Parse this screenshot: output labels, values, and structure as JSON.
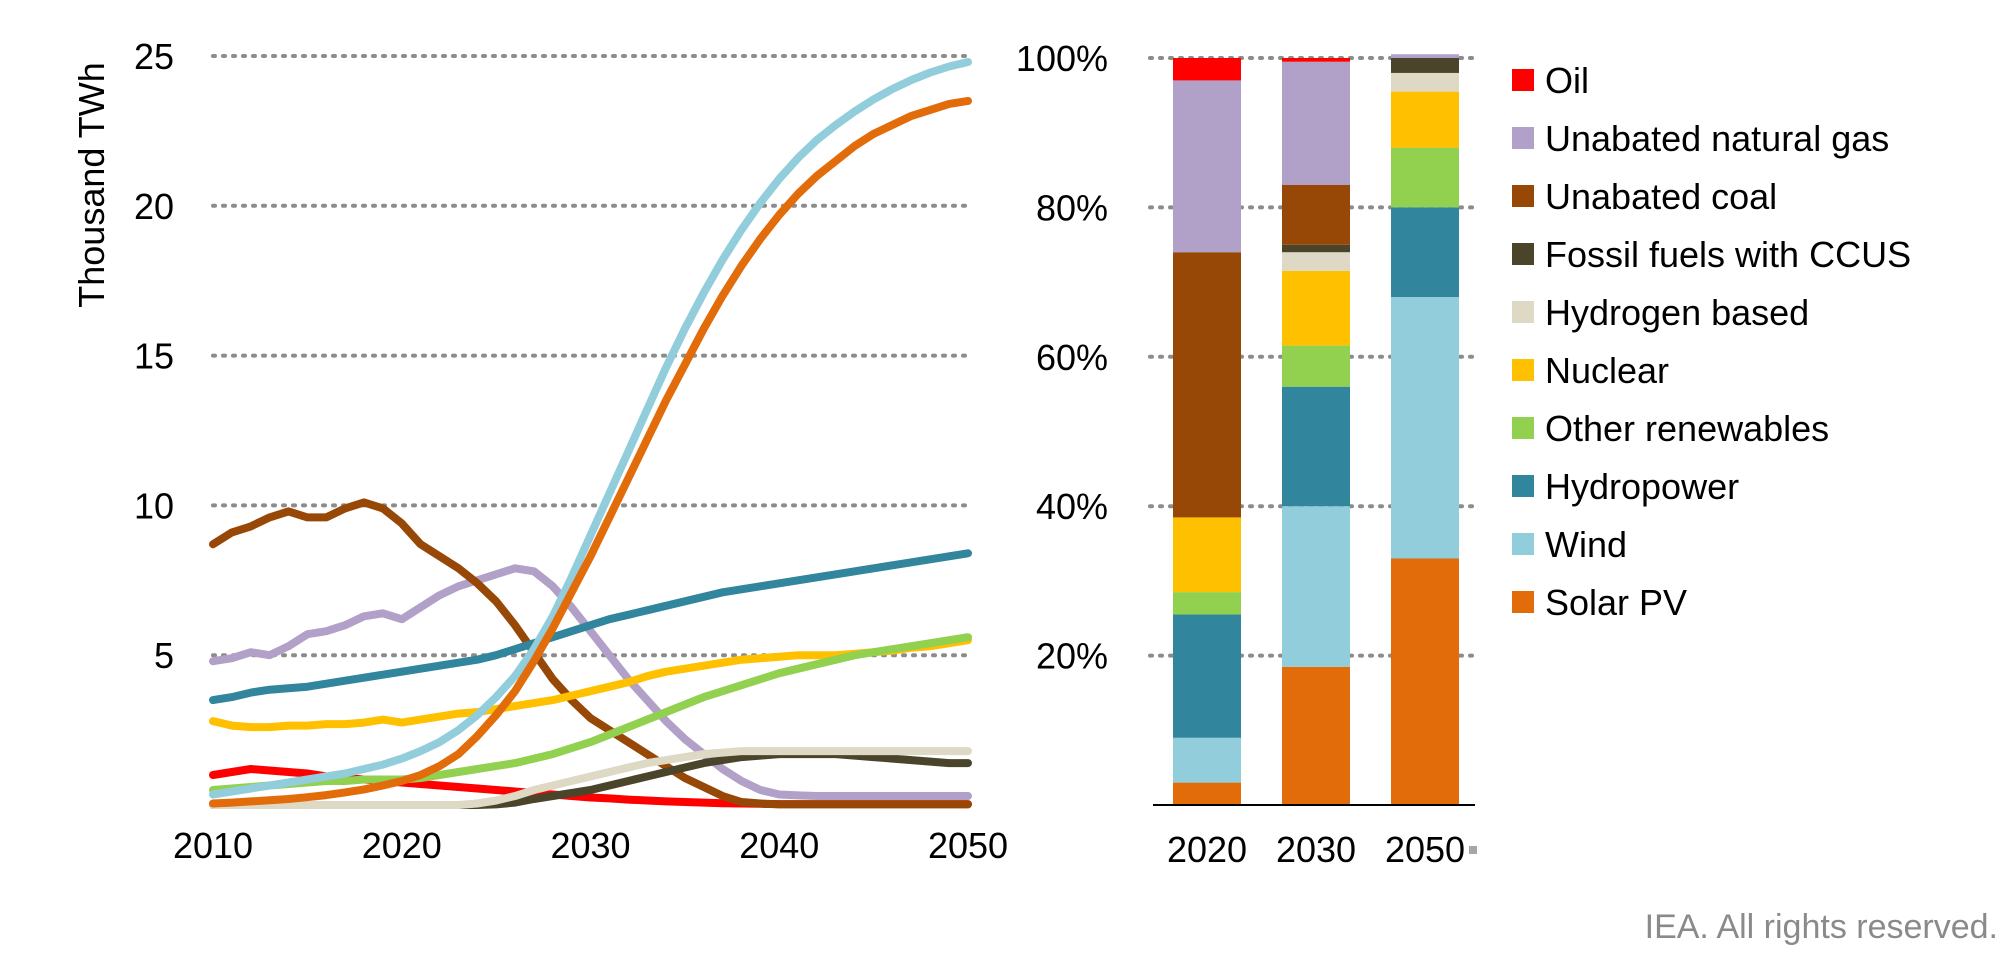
{
  "footer": {
    "copyright": "IEA. All rights reserved."
  },
  "chart_data": [
    {
      "type": "line",
      "ylabel": "Thousand TWh",
      "xlabel": "",
      "x_ticks": [
        "2010",
        "2020",
        "2030",
        "2040",
        "2050"
      ],
      "y_ticks": [
        "5",
        "10",
        "15",
        "20",
        "25"
      ],
      "xlim": [
        2010,
        2050
      ],
      "ylim": [
        0,
        25
      ],
      "grid": "horizontal dotted",
      "x": [
        2010,
        2011,
        2012,
        2013,
        2014,
        2015,
        2016,
        2017,
        2018,
        2019,
        2020,
        2021,
        2022,
        2023,
        2024,
        2025,
        2026,
        2027,
        2028,
        2029,
        2030,
        2031,
        2032,
        2033,
        2034,
        2035,
        2036,
        2037,
        2038,
        2039,
        2040,
        2041,
        2042,
        2043,
        2044,
        2045,
        2046,
        2047,
        2048,
        2049,
        2050
      ],
      "series": [
        {
          "name": "Oil",
          "color": "#ff0000",
          "values": [
            1.0,
            1.1,
            1.2,
            1.15,
            1.1,
            1.05,
            0.95,
            0.9,
            0.85,
            0.8,
            0.75,
            0.7,
            0.65,
            0.6,
            0.55,
            0.5,
            0.45,
            0.4,
            0.35,
            0.3,
            0.25,
            0.22,
            0.18,
            0.15,
            0.12,
            0.1,
            0.08,
            0.06,
            0.05,
            0.04,
            0.03,
            0.03,
            0.03,
            0.03,
            0.03,
            0.03,
            0.03,
            0.03,
            0.03,
            0.03,
            0.03
          ]
        },
        {
          "name": "Unabated natural gas",
          "color": "#b1a0c7",
          "values": [
            4.8,
            4.9,
            5.1,
            5.0,
            5.3,
            5.7,
            5.8,
            6.0,
            6.3,
            6.4,
            6.2,
            6.6,
            7.0,
            7.3,
            7.5,
            7.7,
            7.9,
            7.8,
            7.3,
            6.6,
            5.8,
            5.0,
            4.2,
            3.5,
            2.8,
            2.2,
            1.7,
            1.2,
            0.8,
            0.5,
            0.35,
            0.32,
            0.3,
            0.3,
            0.3,
            0.3,
            0.3,
            0.3,
            0.3,
            0.3,
            0.3
          ]
        },
        {
          "name": "Unabated coal",
          "color": "#974806",
          "values": [
            8.7,
            9.1,
            9.3,
            9.6,
            9.8,
            9.6,
            9.6,
            9.9,
            10.1,
            9.9,
            9.4,
            8.7,
            8.3,
            7.9,
            7.4,
            6.8,
            6.0,
            5.1,
            4.2,
            3.5,
            2.9,
            2.5,
            2.1,
            1.7,
            1.3,
            0.9,
            0.6,
            0.3,
            0.1,
            0.05,
            0.02,
            0.02,
            0.02,
            0.02,
            0.02,
            0.02,
            0.02,
            0.02,
            0.02,
            0.02,
            0.02
          ]
        },
        {
          "name": "Fossil fuels with CCUS",
          "color": "#4a452a",
          "values": [
            0,
            0,
            0,
            0,
            0,
            0,
            0,
            0,
            0,
            0,
            0,
            0,
            0,
            0,
            0,
            0.02,
            0.08,
            0.2,
            0.3,
            0.4,
            0.5,
            0.65,
            0.8,
            0.95,
            1.1,
            1.25,
            1.4,
            1.5,
            1.6,
            1.65,
            1.7,
            1.7,
            1.7,
            1.7,
            1.65,
            1.6,
            1.55,
            1.5,
            1.45,
            1.4,
            1.4
          ]
        },
        {
          "name": "Hydrogen based",
          "color": "#ddd9c4",
          "values": [
            0,
            0,
            0,
            0,
            0,
            0,
            0,
            0,
            0,
            0,
            0,
            0,
            0,
            0,
            0.05,
            0.15,
            0.3,
            0.5,
            0.65,
            0.8,
            0.95,
            1.1,
            1.25,
            1.4,
            1.5,
            1.6,
            1.7,
            1.75,
            1.8,
            1.8,
            1.8,
            1.8,
            1.8,
            1.8,
            1.8,
            1.8,
            1.8,
            1.8,
            1.8,
            1.8,
            1.8
          ]
        },
        {
          "name": "Nuclear",
          "color": "#ffc000",
          "values": [
            2.8,
            2.65,
            2.6,
            2.6,
            2.65,
            2.65,
            2.7,
            2.7,
            2.75,
            2.85,
            2.75,
            2.85,
            2.95,
            3.05,
            3.1,
            3.2,
            3.3,
            3.4,
            3.5,
            3.65,
            3.8,
            3.95,
            4.1,
            4.3,
            4.45,
            4.55,
            4.65,
            4.75,
            4.85,
            4.9,
            4.95,
            5.0,
            5.0,
            5.0,
            5.05,
            5.1,
            5.15,
            5.25,
            5.3,
            5.4,
            5.5
          ]
        },
        {
          "name": "Other renewables",
          "color": "#92d050",
          "values": [
            0.5,
            0.55,
            0.6,
            0.65,
            0.7,
            0.75,
            0.8,
            0.8,
            0.85,
            0.85,
            0.85,
            0.9,
            1.0,
            1.1,
            1.2,
            1.3,
            1.4,
            1.55,
            1.7,
            1.9,
            2.1,
            2.35,
            2.6,
            2.85,
            3.1,
            3.35,
            3.6,
            3.8,
            4.0,
            4.2,
            4.4,
            4.55,
            4.7,
            4.85,
            5.0,
            5.1,
            5.2,
            5.3,
            5.4,
            5.5,
            5.6
          ]
        },
        {
          "name": "Hydropower",
          "color": "#31859c",
          "values": [
            3.5,
            3.6,
            3.75,
            3.85,
            3.9,
            3.95,
            4.05,
            4.15,
            4.25,
            4.35,
            4.45,
            4.55,
            4.65,
            4.75,
            4.85,
            5.0,
            5.2,
            5.4,
            5.6,
            5.8,
            6.0,
            6.2,
            6.35,
            6.5,
            6.65,
            6.8,
            6.95,
            7.1,
            7.2,
            7.3,
            7.4,
            7.5,
            7.6,
            7.7,
            7.8,
            7.9,
            8.0,
            8.1,
            8.2,
            8.3,
            8.4
          ]
        },
        {
          "name": "Wind",
          "color": "#92cddc",
          "values": [
            0.35,
            0.45,
            0.55,
            0.65,
            0.75,
            0.85,
            0.95,
            1.05,
            1.2,
            1.35,
            1.55,
            1.8,
            2.1,
            2.5,
            3.0,
            3.6,
            4.3,
            5.2,
            6.3,
            7.6,
            9.0,
            10.4,
            11.8,
            13.2,
            14.6,
            15.9,
            17.1,
            18.2,
            19.2,
            20.1,
            20.9,
            21.6,
            22.2,
            22.7,
            23.15,
            23.55,
            23.9,
            24.2,
            24.45,
            24.65,
            24.8
          ]
        },
        {
          "name": "Solar PV",
          "color": "#e26b0a",
          "values": [
            0.05,
            0.08,
            0.12,
            0.16,
            0.2,
            0.26,
            0.33,
            0.42,
            0.52,
            0.65,
            0.8,
            1.0,
            1.3,
            1.7,
            2.3,
            3.0,
            3.8,
            4.8,
            5.9,
            7.1,
            8.3,
            9.6,
            10.9,
            12.2,
            13.5,
            14.7,
            15.9,
            17.0,
            18.0,
            18.9,
            19.7,
            20.4,
            21.0,
            21.5,
            22.0,
            22.4,
            22.7,
            23.0,
            23.2,
            23.4,
            23.5
          ]
        }
      ]
    },
    {
      "type": "bar",
      "stacked": "percent",
      "categories": [
        "2020",
        "2030",
        "2050"
      ],
      "y_ticks": [
        "20%",
        "40%",
        "60%",
        "80%",
        "100%"
      ],
      "ylim": [
        0,
        100
      ],
      "grid": "horizontal dotted",
      "legend_position": "right",
      "series": [
        {
          "name": "Solar PV",
          "color": "#e26b0a",
          "values": [
            3,
            18.5,
            33
          ]
        },
        {
          "name": "Wind",
          "color": "#92cddc",
          "values": [
            6,
            21.5,
            35
          ]
        },
        {
          "name": "Hydropower",
          "color": "#31859c",
          "values": [
            16.5,
            16,
            12
          ]
        },
        {
          "name": "Other renewables",
          "color": "#92d050",
          "values": [
            3,
            5.5,
            8
          ]
        },
        {
          "name": "Nuclear",
          "color": "#ffc000",
          "values": [
            10,
            10,
            7.5
          ]
        },
        {
          "name": "Hydrogen based",
          "color": "#ddd9c4",
          "values": [
            0,
            2.5,
            2.5
          ]
        },
        {
          "name": "Fossil fuels with CCUS",
          "color": "#4a452a",
          "values": [
            0,
            1,
            2
          ]
        },
        {
          "name": "Unabated coal",
          "color": "#974806",
          "values": [
            35.5,
            8,
            0
          ]
        },
        {
          "name": "Unabated natural gas",
          "color": "#b1a0c7",
          "values": [
            23,
            16.5,
            0.5
          ]
        },
        {
          "name": "Oil",
          "color": "#ff0000",
          "values": [
            3,
            0.5,
            0
          ]
        }
      ],
      "legend": [
        "Oil",
        "Unabated natural gas",
        "Unabated coal",
        "Fossil fuels with CCUS",
        "Hydrogen based",
        "Nuclear",
        "Other renewables",
        "Hydropower",
        "Wind",
        "Solar PV"
      ]
    }
  ]
}
